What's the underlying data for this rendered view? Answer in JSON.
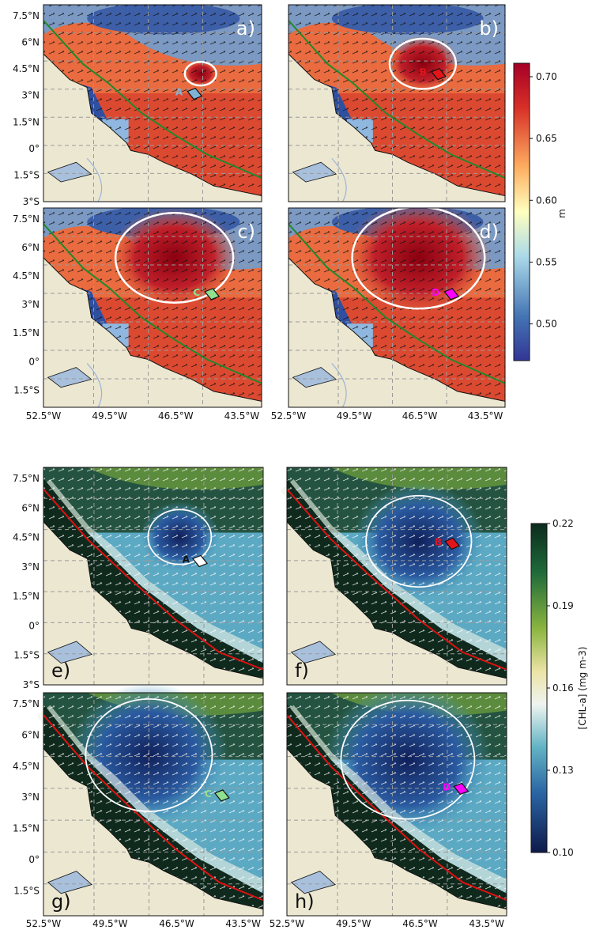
{
  "top_figure": {
    "lat_ticks_full": [
      "7.5°N",
      "6°N",
      "4.5°N",
      "3°N",
      "1.5°N",
      "0°",
      "1.5°S",
      "3°S"
    ],
    "lat_ticks_short": [
      "7.5°N",
      "6°N",
      "4.5°N",
      "3°N",
      "1.5°N",
      "0°",
      "1.5°S"
    ],
    "lon_ticks": [
      "52.5°W",
      "49.5°W",
      "46.5°W",
      "43.5°W"
    ],
    "panels": [
      {
        "label": "a)",
        "region": "A",
        "region_color": "#7fb3d5"
      },
      {
        "label": "b)",
        "region": "B",
        "region_color": "#e4141b"
      },
      {
        "label": "c)",
        "region": "C",
        "region_color": "#8fe08f"
      },
      {
        "label": "d)",
        "region": "D",
        "region_color": "#ff00ff"
      }
    ],
    "colorbar": {
      "unit": "m",
      "ticks": [
        "0.70",
        "0.65",
        "0.60",
        "0.55",
        "0.50"
      ],
      "colors": [
        "#b2182b",
        "#e34a33",
        "#fdae61",
        "#ffffbf",
        "#abd9e9",
        "#4575b4",
        "#313695"
      ]
    }
  },
  "bottom_figure": {
    "lat_ticks_full": [
      "7.5°N",
      "6°N",
      "4.5°N",
      "3°N",
      "1.5°N",
      "0°",
      "1.5°S",
      "3°S"
    ],
    "lat_ticks_short": [
      "7.5°N",
      "6°N",
      "4.5°N",
      "3°N",
      "1.5°N",
      "0°",
      "1.5°S"
    ],
    "lon_ticks": [
      "52.5°W",
      "49.5°W",
      "46.5°W",
      "43.5°W",
      "52.5°W",
      "49.5°W",
      "46.5°W",
      "43.5°W"
    ],
    "panels": [
      {
        "label": "e)",
        "region": "A",
        "region_color": "#ffffff"
      },
      {
        "label": "f)",
        "region": "B",
        "region_color": "#e4141b"
      },
      {
        "label": "g)",
        "region": "C",
        "region_color": "#8fe08f"
      },
      {
        "label": "h)",
        "region": "D",
        "region_color": "#ff00ff"
      }
    ],
    "colorbar": {
      "unit": "[CHL-a] (mg m-3)",
      "ticks": [
        "0.22",
        "0.19",
        "0.16",
        "0.13",
        "0.10"
      ],
      "colors": [
        "#0b2b1e",
        "#1f6b3a",
        "#7fb33f",
        "#e8e2a0",
        "#e9f2ef",
        "#5fb3c6",
        "#2d6fa6",
        "#173a7a",
        "#0d1a4a"
      ]
    }
  }
}
